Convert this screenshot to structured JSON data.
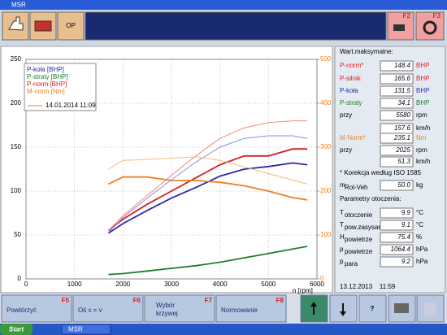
{
  "window": {
    "title": "MSR"
  },
  "toolbar": {
    "op": "OP",
    "f2": "F2",
    "f3": "F3"
  },
  "chart_data": {
    "type": "line",
    "x_label": "n [rpm]",
    "x": [
      1700,
      2000,
      2500,
      3000,
      3500,
      4000,
      4500,
      5000,
      5500,
      5800
    ],
    "xlim": [
      0,
      6000
    ],
    "xticks": [
      0,
      1000,
      2000,
      3000,
      4000,
      5000,
      6000
    ],
    "ylim": [
      0,
      250
    ],
    "yticks": [
      0,
      50,
      100,
      150,
      200,
      250
    ],
    "y2lim": [
      0,
      500
    ],
    "y2ticks": [
      0,
      100,
      200,
      300,
      400,
      500
    ],
    "y2color": "#f08020",
    "grid": true,
    "legend": "top-left",
    "legend_note": "14.01.2014 11:09",
    "legend_note_color": "#f08020",
    "series": [
      {
        "name": "P-koła [BHP]",
        "color": "#2a2aa8",
        "values": [
          52,
          63,
          78,
          92,
          104,
          117,
          125,
          128,
          132,
          130
        ]
      },
      {
        "name": "P-straty [BHP]",
        "color": "#1f7f2a",
        "values": [
          5,
          6,
          9,
          12,
          15,
          19,
          24,
          29,
          34,
          37
        ]
      },
      {
        "name": "P-norm [BHP]",
        "color": "#d42020",
        "values": [
          55,
          68,
          85,
          100,
          115,
          130,
          140,
          140,
          148,
          148
        ]
      },
      {
        "name": "M-norm [Nm]",
        "color": "#f08020",
        "axis": "y2",
        "values": [
          216,
          232,
          232,
          224,
          224,
          220,
          212,
          200,
          185,
          180
        ]
      },
      {
        "color": "#8c8ce0",
        "values": [
          53,
          70,
          92,
          113,
          133,
          150,
          160,
          163,
          163,
          160
        ]
      },
      {
        "color": "#f08a78",
        "values": [
          55,
          72,
          95,
          118,
          140,
          160,
          172,
          178,
          180,
          180
        ]
      },
      {
        "color": "#f8b878",
        "axis": "y2",
        "values": [
          250,
          270,
          272,
          275,
          278,
          270,
          255,
          240,
          225,
          216
        ]
      }
    ]
  },
  "panel": {
    "header": "Wart.maksymalne:",
    "rows": [
      {
        "label": "P-norm*",
        "value": "148.4",
        "unit": "BHP",
        "color": "#e02020"
      },
      {
        "label": "P-silnik",
        "value": "165.6",
        "unit": "BHP",
        "color": "#e02020"
      },
      {
        "label": "P-koła",
        "value": "131.5",
        "unit": "BHP",
        "color": "#2a2aa8"
      },
      {
        "label": "P-straty",
        "value": "34.1",
        "unit": "BHP",
        "color": "#1f7f2a"
      },
      {
        "label": "przy",
        "value": "5580",
        "unit": "rpm",
        "color": "#000000"
      },
      {
        "value": "157.6",
        "unit": "km/h",
        "color": "#000000"
      },
      {
        "label": "M-Norm*",
        "value": "235.1",
        "unit": "Nm",
        "color": "#f08020"
      },
      {
        "label": "przy",
        "value": "2025",
        "unit": "rpm",
        "color": "#000000"
      },
      {
        "value": "51.3",
        "unit": "km/h",
        "color": "#000000"
      }
    ],
    "note": "* Korekcja według ISO 1585",
    "mass": {
      "label": "m",
      "sub": "Rol-Veh",
      "value": "50.0",
      "unit": "kg"
    },
    "env_header": "Parametry otoczenia:",
    "env": [
      {
        "label": "T",
        "sub": "otoczenie",
        "value": "9.9",
        "unit": "°C"
      },
      {
        "label": "T",
        "sub": "pow.zasysane",
        "value": "9.1",
        "unit": "°C"
      },
      {
        "label": "H",
        "sub": "powietrze",
        "value": "75.4",
        "unit": "%"
      },
      {
        "label": "p",
        "sub": "powietrze",
        "value": "1064.4",
        "unit": "hPa"
      },
      {
        "label": "p",
        "sub": "para",
        "value": "9.2",
        "unit": "hPa"
      }
    ],
    "date": "13.12.2013    11:59"
  },
  "buttons": [
    {
      "label": "Powtórzyć",
      "key": "F5"
    },
    {
      "label": "Oś x = v",
      "key": "F6"
    },
    {
      "label": "Wybór krzywej",
      "key": "F7"
    },
    {
      "label": "Normowanie",
      "key": "F8"
    }
  ],
  "taskbar": {
    "start": "Start",
    "task": "MSR"
  }
}
